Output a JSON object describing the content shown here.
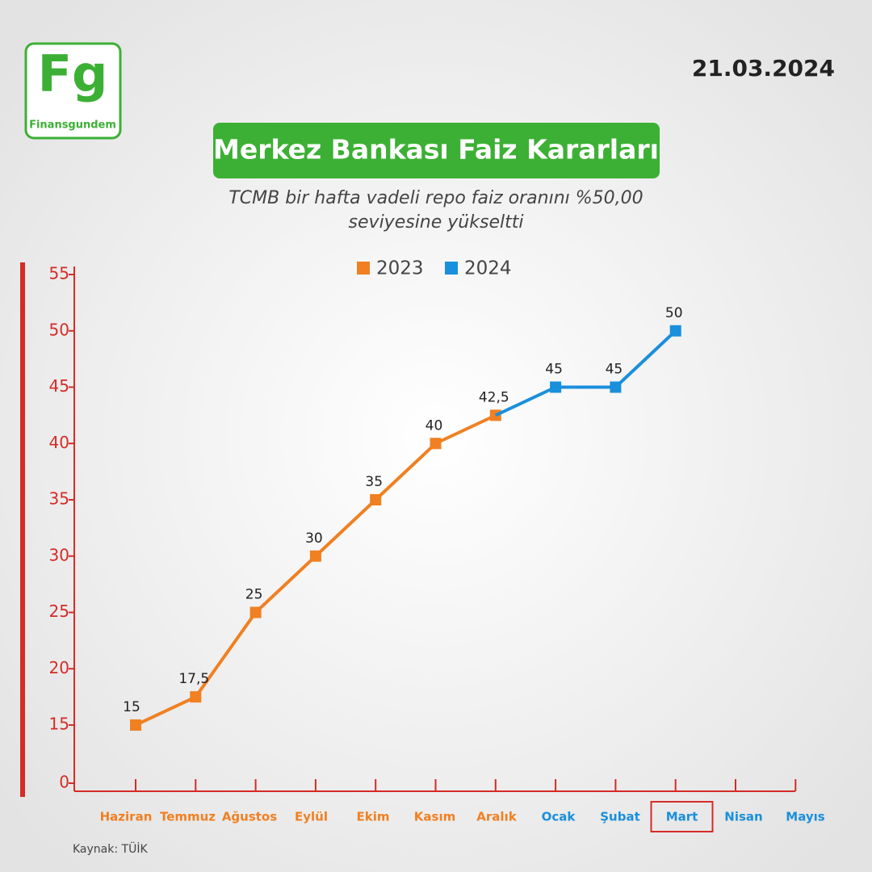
{
  "brand": {
    "logo": "Fg",
    "name": "Finansgundem"
  },
  "date": "21.03.2024",
  "source": "Kaynak: TÜİK",
  "chart_data": {
    "type": "line",
    "title": "Merkez Bankası Faiz Kararları",
    "subtitle": [
      "TCMB bir hafta vadeli repo faiz oranını %50,00",
      "seviyesine yükseltti"
    ],
    "categories": [
      "Haziran",
      "Temmuz",
      "Ağustos",
      "Eylül",
      "Ekim",
      "Kasım",
      "Aralık",
      "Ocak",
      "Şubat",
      "Mart",
      "Nisan",
      "Mayıs"
    ],
    "series": [
      {
        "name": "2023",
        "color": "#f08022",
        "values": [
          15,
          17.5,
          25,
          30,
          35,
          40,
          42.5,
          null,
          null,
          null,
          null,
          null
        ],
        "value_labels": [
          "15",
          "17,5",
          "25",
          "30",
          "35",
          "40",
          "42,5",
          null,
          null,
          null,
          null,
          null
        ]
      },
      {
        "name": "2024",
        "color": "#1a8fdc",
        "values": [
          null,
          null,
          null,
          null,
          null,
          null,
          null,
          45,
          45,
          50,
          null,
          null
        ]
      }
    ],
    "ylim": [
      0,
      55
    ],
    "ybreak": [
      0,
      15
    ],
    "yticks": [
      0,
      15,
      20,
      25,
      30,
      35,
      40,
      45,
      50,
      55
    ],
    "axis_color": "#d52b27",
    "highlight_category": "Mart"
  }
}
